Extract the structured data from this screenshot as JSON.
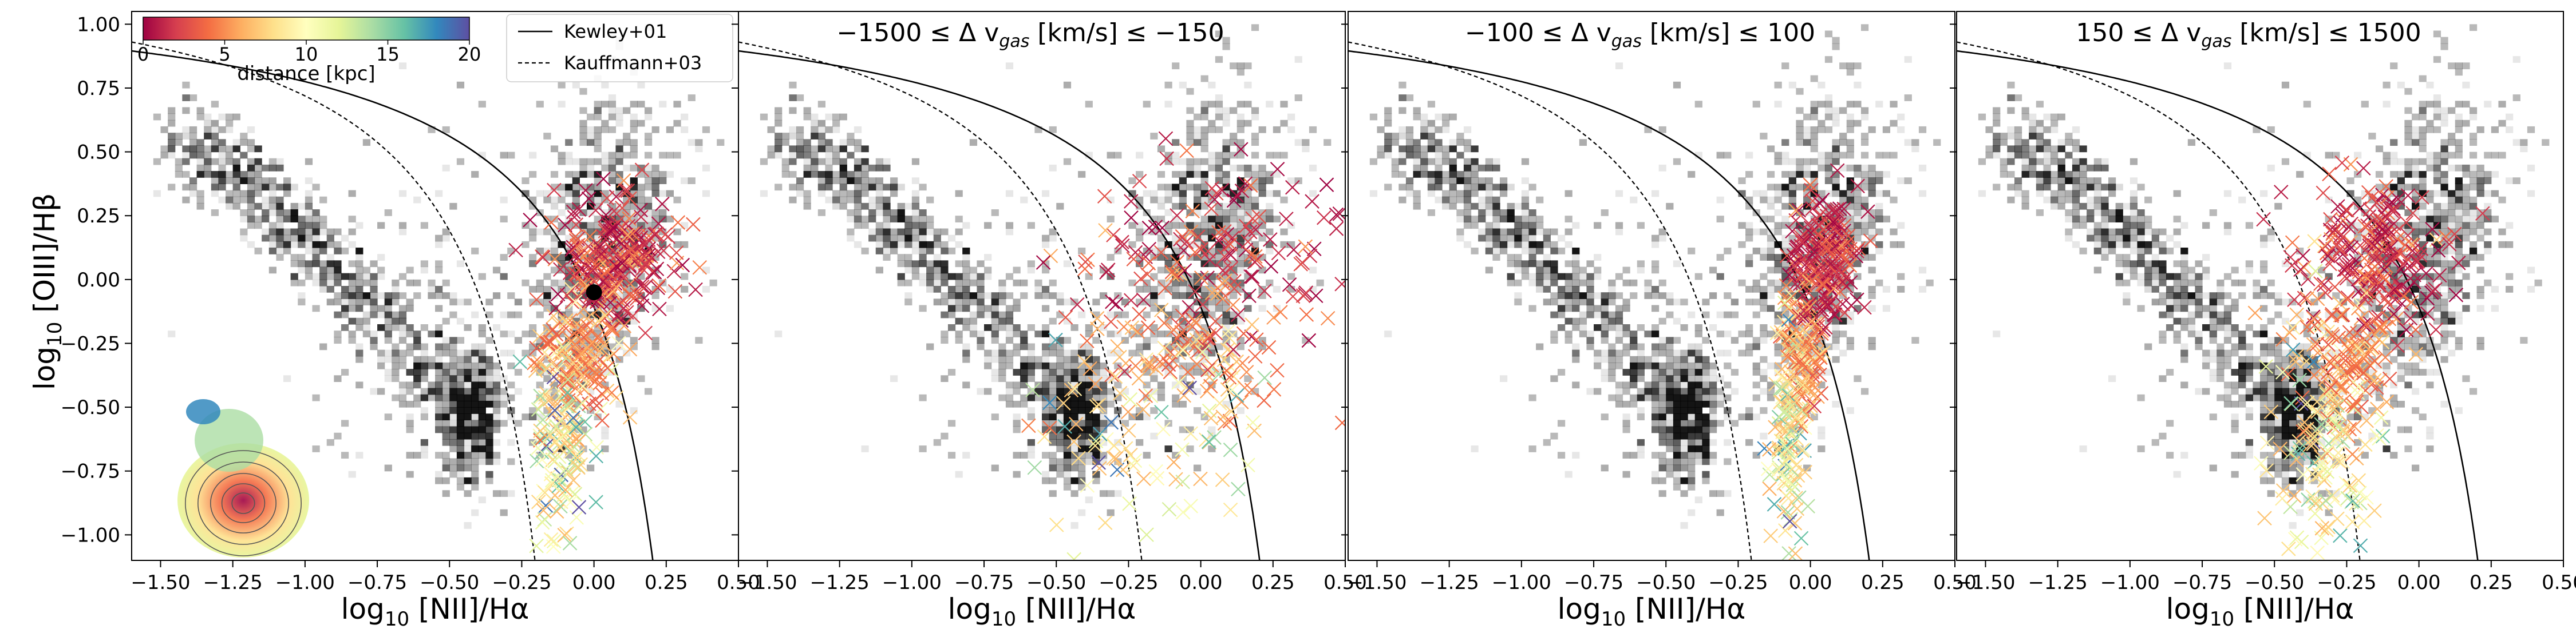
{
  "chart_data": {
    "type": "scatter",
    "figure": "BPT diagnostic diagram, four panels",
    "x_axis": {
      "label_main": "log",
      "label_sub": "10",
      "label_tail": " [NII]/Hα",
      "range": [
        -1.6,
        0.5
      ],
      "ticks": [
        -1.5,
        -1.25,
        -1.0,
        -0.75,
        -0.5,
        -0.25,
        0.0,
        0.25,
        0.5
      ],
      "tick_labels": [
        "−1.50",
        "−1.25",
        "−1.00",
        "−0.75",
        "−0.50",
        "−0.25",
        "0.00",
        "0.25",
        "0.50"
      ]
    },
    "y_axis": {
      "label_main": "log",
      "label_sub": "10",
      "label_tail": " [OIII]/Hβ",
      "range": [
        -1.1,
        1.05
      ],
      "ticks": [
        -1.0,
        -0.75,
        -0.5,
        -0.25,
        0.0,
        0.25,
        0.5,
        0.75,
        1.0
      ],
      "tick_labels": [
        "−1.00",
        "−0.75",
        "−0.50",
        "−0.25",
        "0.00",
        "0.25",
        "0.50",
        "0.75",
        "1.00"
      ]
    },
    "lines": [
      {
        "name": "Kewley+01",
        "style": "solid",
        "formula": "0.61/(x-0.47)+1.19"
      },
      {
        "name": "Kauffmann+03",
        "style": "dashed",
        "formula": "0.61/(x-0.05)+1.30"
      }
    ],
    "colorbar": {
      "label": "distance [kpc]",
      "range": [
        0,
        20
      ],
      "ticks": [
        0,
        5,
        10,
        15,
        20
      ],
      "tick_labels": [
        "0",
        "5",
        "10",
        "15",
        "20"
      ],
      "colormap": "Spectral"
    },
    "legend": {
      "position": "upper right of first panel",
      "entries": [
        "Kewley+01",
        "Kauffmann+03"
      ]
    },
    "panels": [
      {
        "title_parts": [],
        "marker": {
          "x": 0.0,
          "y": -0.05,
          "label": "nucleus"
        }
      },
      {
        "title_parts": [
          "−1500 ≤ Δ v",
          "gas",
          " [km/s] ≤ −150"
        ]
      },
      {
        "title_parts": [
          "−100 ≤ Δ v",
          "gas",
          " [km/s] ≤ 100"
        ]
      },
      {
        "title_parts": [
          "150 ≤ Δ v",
          "gas",
          " [km/s] ≤ 1500"
        ]
      }
    ],
    "background": {
      "description": "grey 2D density of SDSS galaxies",
      "sf_branch_peak": [
        -0.42,
        -0.55
      ],
      "agn_branch_peak": [
        0.05,
        0.2
      ]
    },
    "scatter_summary": {
      "marker": "x",
      "color_by": "distance [kpc]",
      "groups": [
        {
          "x": [
            0.0,
            0.4
          ],
          "y": [
            -0.1,
            0.3
          ],
          "distance": [
            0,
            4
          ]
        },
        {
          "x": [
            -0.2,
            0.05
          ],
          "y": [
            -0.5,
            -0.1
          ],
          "distance": [
            2,
            8
          ]
        },
        {
          "x": [
            -0.25,
            -0.05
          ],
          "y": [
            -1.05,
            -0.45
          ],
          "distance": [
            6,
            18
          ]
        }
      ]
    },
    "inset": {
      "description": "map of the galaxy coloured by distance with grey contours",
      "position": "lower-left of first panel"
    }
  }
}
